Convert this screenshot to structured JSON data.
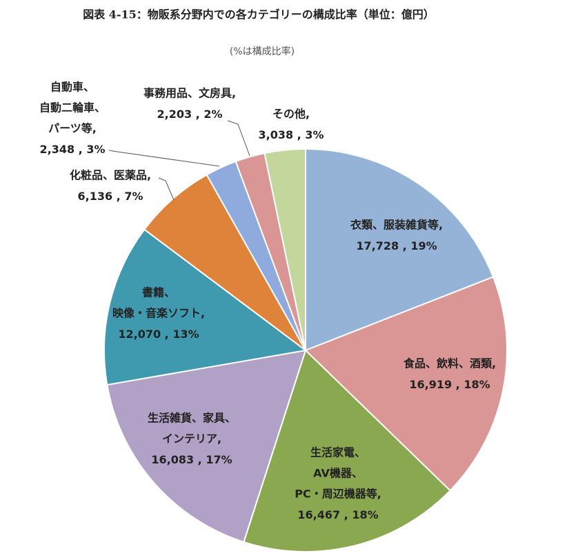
{
  "chart_data": {
    "type": "pie",
    "title": "図表 4-15：物販系分野内での各カテゴリーの構成比率（単位：億円）",
    "subtitle": "(%は構成比率)",
    "categories": [
      [
        "衣類、服装雑貨等,"
      ],
      [
        "食品、飲料、酒類,"
      ],
      [
        "生活家電、",
        "AV機器、",
        "PC・周辺機器等,"
      ],
      [
        "生活雑貨、家具、",
        "インテリア,"
      ],
      [
        "書籍、",
        "映像・音楽ソフト,"
      ],
      [
        "化粧品、医薬品,"
      ],
      [
        "自動車、",
        "自動二輪車、",
        "パーツ等,"
      ],
      [
        "事務用品、文房具,"
      ],
      [
        "その他,"
      ]
    ],
    "values": [
      17728,
      16919,
      16467,
      16083,
      12070,
      6136,
      2348,
      2203,
      3038
    ],
    "value_labels": [
      "17,728",
      "16,919",
      "16,467",
      "16,083",
      "12,070",
      "6,136",
      "2,348",
      "2,203",
      "3,038"
    ],
    "percents": [
      19,
      18,
      18,
      17,
      13,
      7,
      3,
      2,
      3
    ],
    "percent_labels": [
      "19%",
      "18%",
      "18%",
      "17%",
      "13%",
      "7%",
      "3%",
      "2%",
      "3%"
    ],
    "label_separator": " , ",
    "colors": [
      "#95b3d7",
      "#d99694",
      "#8aa84f",
      "#b2a1c7",
      "#3f9ab0",
      "#e0833a",
      "#8faadc",
      "#d99694",
      "#c3d69b"
    ]
  }
}
